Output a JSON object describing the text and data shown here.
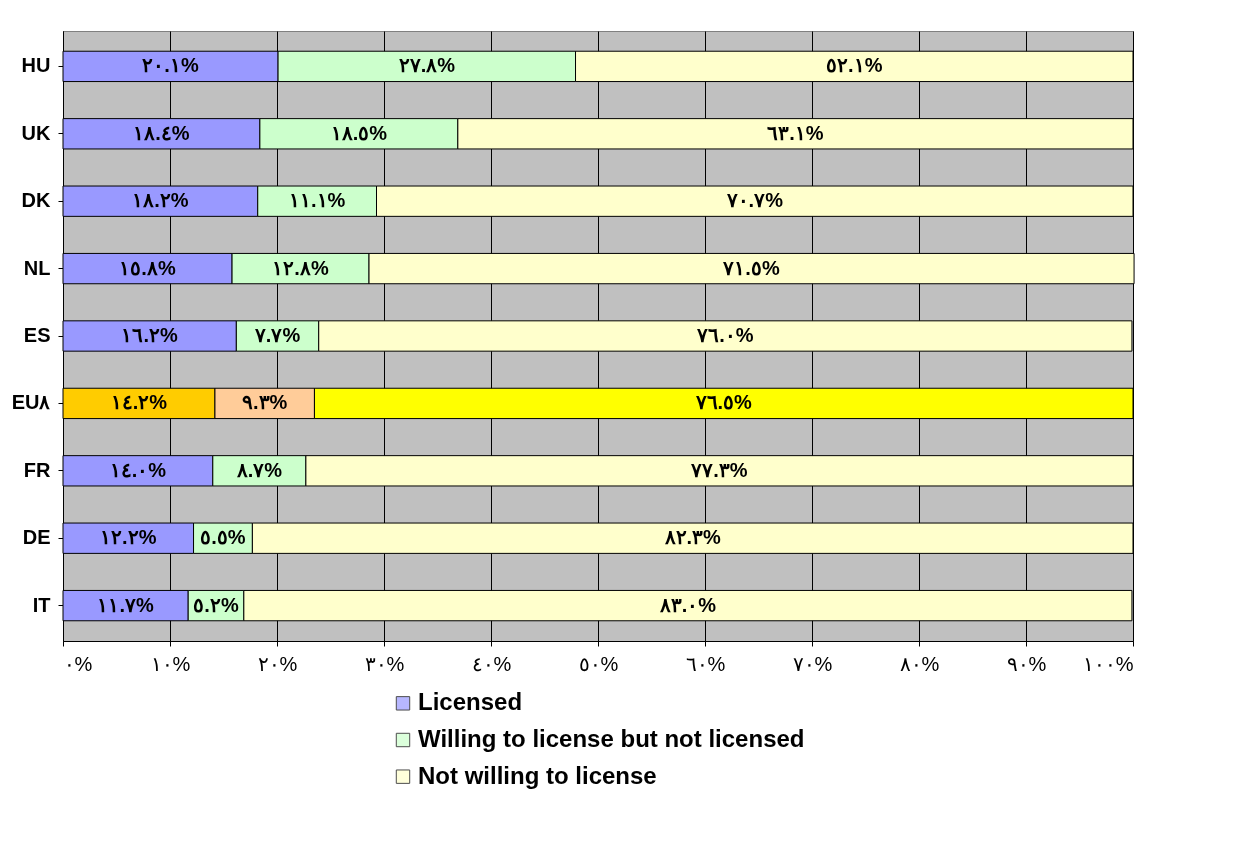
{
  "chart_data": {
    "type": "bar",
    "orientation": "horizontal",
    "stacked": true,
    "categories": [
      "HU",
      "UK",
      "DK",
      "NL",
      "ES",
      "EU٨",
      "FR",
      "DE",
      "IT"
    ],
    "series": [
      {
        "name": "Licensed",
        "color": "#9999ff",
        "colors": [
          "#9999ff",
          "#9999ff",
          "#9999ff",
          "#9999ff",
          "#9999ff",
          "#ffcc00",
          "#9999ff",
          "#9999ff",
          "#9999ff"
        ],
        "values": [
          20.1,
          18.4,
          18.2,
          15.8,
          16.2,
          14.2,
          14.0,
          12.2,
          11.7
        ],
        "value_labels": [
          "٢٠.١%",
          "١٨.٤%",
          "١٨.٢%",
          "١٥.٨%",
          "١٦.٢%",
          "١٤.٢%",
          "١٤.٠%",
          "١٢.٢%",
          "١١.٧%"
        ]
      },
      {
        "name": "Willing to license but not licensed",
        "color": "#ccffcc",
        "colors": [
          "#ccffcc",
          "#ccffcc",
          "#ccffcc",
          "#ccffcc",
          "#ccffcc",
          "#ffcc99",
          "#ccffcc",
          "#ccffcc",
          "#ccffcc"
        ],
        "values": [
          27.8,
          18.5,
          11.1,
          12.8,
          7.7,
          9.3,
          8.7,
          5.5,
          5.2
        ],
        "value_labels": [
          "٢٧.٨%",
          "١٨.٥%",
          "١١.١%",
          "١٢.٨%",
          "٧.٧%",
          "٩.٣%",
          "٨.٧%",
          "٥.٥%",
          "٥.٢%"
        ]
      },
      {
        "name": "Not willing to license",
        "color": "#ffffcc",
        "colors": [
          "#ffffcc",
          "#ffffcc",
          "#ffffcc",
          "#ffffcc",
          "#ffffcc",
          "#ffff00",
          "#ffffcc",
          "#ffffcc",
          "#ffffcc"
        ],
        "values": [
          52.1,
          63.1,
          70.7,
          71.5,
          76.0,
          76.5,
          77.3,
          82.3,
          83.0
        ],
        "value_labels": [
          "٥٢.١%",
          "٦٣.١%",
          "٧٠.٧%",
          "٧١.٥%",
          "٧٦.٠%",
          "٧٦.٥%",
          "٧٧.٣%",
          "٨٢.٣%",
          "٨٣.٠%"
        ]
      }
    ],
    "xlim": [
      0,
      100
    ],
    "xticks": [
      {
        "value": 0,
        "label": "٠%"
      },
      {
        "value": 10,
        "label": "١٠%"
      },
      {
        "value": 20,
        "label": "٢٠%"
      },
      {
        "value": 30,
        "label": "٣٠%"
      },
      {
        "value": 40,
        "label": "٤٠%"
      },
      {
        "value": 50,
        "label": "٥٠%"
      },
      {
        "value": 60,
        "label": "٦٠%"
      },
      {
        "value": 70,
        "label": "٧٠%"
      },
      {
        "value": 80,
        "label": "٨٠%"
      },
      {
        "value": 90,
        "label": "٩٠%"
      },
      {
        "value": 100,
        "label": "١٠٠%"
      }
    ],
    "grid": "x",
    "legend": "bottom"
  }
}
